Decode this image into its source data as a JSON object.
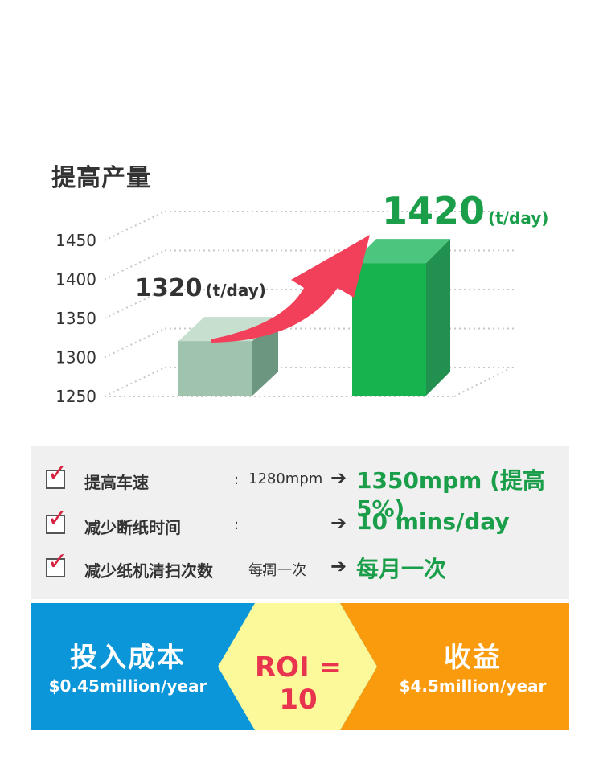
{
  "chart_data": {
    "type": "bar",
    "title": "提高产量",
    "categories": [
      "",
      ""
    ],
    "values": [
      1320,
      1420
    ],
    "ylim": [
      1250,
      1450
    ],
    "yticks": [
      1250,
      1300,
      1350,
      1400,
      1450
    ],
    "data_labels": [
      {
        "value": "1320",
        "unit": "(t/day)"
      },
      {
        "value": "1420",
        "unit": "(t/day)"
      }
    ],
    "grid": true,
    "colors": {
      "bar1_front": "#9fc3ad",
      "bar1_top": "#c7dfcf",
      "bar1_side": "#6d9680",
      "bar2_front": "#16b34f",
      "bar2_top": "#4cc67f",
      "bar2_side": "#22914f",
      "arrow": "#f2405b",
      "label2": "#1a9e4a"
    }
  },
  "checklist": [
    {
      "label": "提高车速",
      "colon": ":",
      "old": "1280mpm",
      "arrow": "➔",
      "new": "1350mpm (提高5%)"
    },
    {
      "label": "减少断纸时间",
      "colon": ":",
      "old": "",
      "arrow": "➔",
      "new": "10 mins/day"
    },
    {
      "label": "减少纸机清扫次数",
      "colon": ":",
      "old": "每周一次",
      "arrow": "➔",
      "new": "每月一次"
    }
  ],
  "roi": {
    "left_title": "投入成本",
    "left_value": "$0.45million/year",
    "center": "ROI = 10",
    "right_title": "收益",
    "right_value": "$4.5million/year",
    "colors": {
      "left": "#0a96d8",
      "center": "#fbf99a",
      "right": "#f99b0c"
    }
  }
}
